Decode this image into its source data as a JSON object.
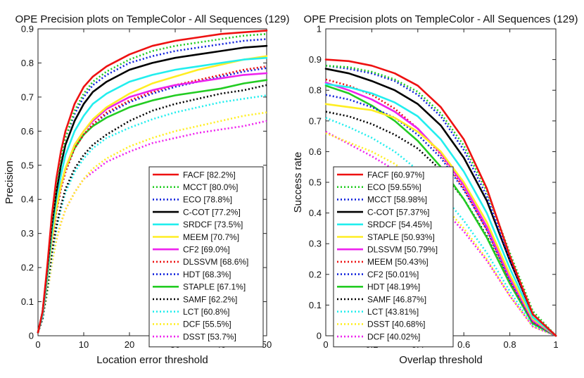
{
  "chart_data": [
    {
      "type": "line",
      "title": "OPE Precision plots on TempleColor - All Sequences (129)",
      "xlabel": "Location error threshold",
      "ylabel": "Precision",
      "xlim": [
        0,
        50
      ],
      "ylim": [
        0,
        0.9
      ],
      "xticks": [
        "0",
        "10",
        "20",
        "30",
        "40",
        "50"
      ],
      "yticks": [
        "0",
        "0.1",
        "0.2",
        "0.3",
        "0.4",
        "0.5",
        "0.6",
        "0.7",
        "0.8",
        "0.9"
      ],
      "grid": false,
      "legend_position": "bottom-right",
      "x": [
        0,
        1,
        2,
        3,
        4,
        5,
        6,
        8,
        10,
        12,
        15,
        20,
        25,
        30,
        35,
        40,
        45,
        50
      ],
      "series": [
        {
          "name": "FACF [82.2%]",
          "color": "#ee1111",
          "dash": "solid",
          "values": [
            0.01,
            0.07,
            0.2,
            0.35,
            0.46,
            0.54,
            0.6,
            0.68,
            0.73,
            0.76,
            0.79,
            0.825,
            0.85,
            0.865,
            0.875,
            0.885,
            0.89,
            0.895
          ]
        },
        {
          "name": "MCCT [80.0%]",
          "color": "#22cc22",
          "dash": "dotted",
          "values": [
            0.01,
            0.07,
            0.19,
            0.33,
            0.44,
            0.52,
            0.58,
            0.66,
            0.71,
            0.745,
            0.775,
            0.81,
            0.835,
            0.85,
            0.86,
            0.87,
            0.88,
            0.885
          ]
        },
        {
          "name": "ECO [78.8%]",
          "color": "#1122dd",
          "dash": "dotted",
          "values": [
            0.01,
            0.07,
            0.19,
            0.33,
            0.44,
            0.52,
            0.58,
            0.65,
            0.7,
            0.735,
            0.765,
            0.8,
            0.82,
            0.835,
            0.845,
            0.855,
            0.865,
            0.87
          ]
        },
        {
          "name": "C-COT [77.2%]",
          "color": "#000000",
          "dash": "solid",
          "values": [
            0.01,
            0.07,
            0.19,
            0.32,
            0.42,
            0.5,
            0.56,
            0.63,
            0.68,
            0.715,
            0.745,
            0.78,
            0.8,
            0.815,
            0.825,
            0.835,
            0.845,
            0.85
          ]
        },
        {
          "name": "SRDCF [73.5%]",
          "color": "#22eeee",
          "dash": "solid",
          "values": [
            0.01,
            0.06,
            0.17,
            0.3,
            0.4,
            0.47,
            0.53,
            0.6,
            0.645,
            0.68,
            0.71,
            0.745,
            0.765,
            0.78,
            0.79,
            0.8,
            0.81,
            0.815
          ]
        },
        {
          "name": "MEEM [70.7%]",
          "color": "#ffee22",
          "dash": "solid",
          "values": [
            0.01,
            0.06,
            0.16,
            0.28,
            0.37,
            0.44,
            0.49,
            0.56,
            0.6,
            0.635,
            0.67,
            0.71,
            0.74,
            0.76,
            0.78,
            0.795,
            0.81,
            0.82
          ]
        },
        {
          "name": "CF2 [69.0%]",
          "color": "#ee22ee",
          "dash": "solid",
          "values": [
            0.01,
            0.06,
            0.16,
            0.28,
            0.37,
            0.44,
            0.49,
            0.56,
            0.6,
            0.63,
            0.665,
            0.7,
            0.72,
            0.735,
            0.745,
            0.755,
            0.765,
            0.77
          ]
        },
        {
          "name": "DLSSVM [68.6%]",
          "color": "#ee1111",
          "dash": "dotted",
          "values": [
            0.01,
            0.06,
            0.16,
            0.27,
            0.36,
            0.43,
            0.48,
            0.55,
            0.59,
            0.62,
            0.655,
            0.69,
            0.715,
            0.735,
            0.75,
            0.765,
            0.78,
            0.79
          ]
        },
        {
          "name": "HDT [68.3%]",
          "color": "#1122dd",
          "dash": "dotted",
          "values": [
            0.01,
            0.06,
            0.16,
            0.27,
            0.36,
            0.43,
            0.48,
            0.55,
            0.59,
            0.62,
            0.65,
            0.685,
            0.71,
            0.73,
            0.745,
            0.76,
            0.775,
            0.785
          ]
        },
        {
          "name": "STAPLE [67.1%]",
          "color": "#22cc22",
          "dash": "solid",
          "values": [
            0.01,
            0.06,
            0.16,
            0.28,
            0.37,
            0.44,
            0.49,
            0.55,
            0.59,
            0.615,
            0.64,
            0.67,
            0.69,
            0.705,
            0.715,
            0.725,
            0.74,
            0.75
          ]
        },
        {
          "name": "SAMF [62.2%]",
          "color": "#000000",
          "dash": "dotted",
          "values": [
            0.01,
            0.05,
            0.14,
            0.24,
            0.32,
            0.38,
            0.43,
            0.49,
            0.53,
            0.56,
            0.59,
            0.63,
            0.66,
            0.68,
            0.695,
            0.71,
            0.72,
            0.735
          ]
        },
        {
          "name": "LCT [60.8%]",
          "color": "#22eeee",
          "dash": "dotted",
          "values": [
            0.01,
            0.05,
            0.13,
            0.23,
            0.31,
            0.37,
            0.42,
            0.48,
            0.52,
            0.55,
            0.58,
            0.61,
            0.635,
            0.655,
            0.67,
            0.685,
            0.695,
            0.705
          ]
        },
        {
          "name": "DCF [55.5%]",
          "color": "#ffee22",
          "dash": "dotted",
          "values": [
            0.01,
            0.05,
            0.12,
            0.21,
            0.28,
            0.33,
            0.37,
            0.42,
            0.46,
            0.49,
            0.52,
            0.555,
            0.58,
            0.6,
            0.615,
            0.63,
            0.645,
            0.655
          ]
        },
        {
          "name": "DSST [53.7%]",
          "color": "#ee22ee",
          "dash": "dotted",
          "values": [
            0.01,
            0.05,
            0.12,
            0.21,
            0.28,
            0.33,
            0.37,
            0.42,
            0.46,
            0.48,
            0.51,
            0.54,
            0.565,
            0.58,
            0.595,
            0.605,
            0.615,
            0.63
          ]
        }
      ]
    },
    {
      "type": "line",
      "title": "OPE Precision plots on TempleColor - All Sequences (129)",
      "xlabel": "Overlap threshold",
      "ylabel": "Success rate",
      "xlim": [
        0,
        1
      ],
      "ylim": [
        0,
        1
      ],
      "xticks": [
        "0",
        "0.2",
        "0.4",
        "0.6",
        "0.8",
        "1"
      ],
      "yticks": [
        "0",
        "0.1",
        "0.2",
        "0.3",
        "0.4",
        "0.5",
        "0.6",
        "0.7",
        "0.8",
        "0.9",
        "1"
      ],
      "grid": false,
      "legend_position": "bottom-left",
      "x": [
        0,
        0.1,
        0.2,
        0.3,
        0.4,
        0.5,
        0.6,
        0.7,
        0.8,
        0.9,
        1.0
      ],
      "series": [
        {
          "name": "FACF [60.97%]",
          "color": "#ee1111",
          "dash": "solid",
          "values": [
            0.9,
            0.895,
            0.88,
            0.855,
            0.815,
            0.745,
            0.64,
            0.48,
            0.26,
            0.07,
            0.0
          ]
        },
        {
          "name": "ECO [59.55%]",
          "color": "#22cc22",
          "dash": "dotted",
          "values": [
            0.88,
            0.875,
            0.86,
            0.835,
            0.795,
            0.725,
            0.62,
            0.47,
            0.27,
            0.08,
            0.0
          ]
        },
        {
          "name": "MCCT [58.98%]",
          "color": "#1122dd",
          "dash": "dotted",
          "values": [
            0.88,
            0.87,
            0.855,
            0.83,
            0.785,
            0.715,
            0.605,
            0.455,
            0.25,
            0.07,
            0.0
          ]
        },
        {
          "name": "C-COT [57.37%]",
          "color": "#000000",
          "dash": "solid",
          "values": [
            0.87,
            0.855,
            0.83,
            0.8,
            0.755,
            0.685,
            0.58,
            0.44,
            0.245,
            0.07,
            0.0
          ]
        },
        {
          "name": "SRDCF [54.45%]",
          "color": "#22eeee",
          "dash": "solid",
          "values": [
            0.82,
            0.81,
            0.79,
            0.76,
            0.715,
            0.64,
            0.535,
            0.4,
            0.22,
            0.06,
            0.0
          ]
        },
        {
          "name": "STAPLE [50.93%]",
          "color": "#ffee22",
          "dash": "solid",
          "values": [
            0.755,
            0.745,
            0.735,
            0.71,
            0.665,
            0.6,
            0.5,
            0.37,
            0.2,
            0.055,
            0.0
          ]
        },
        {
          "name": "DLSSVM [50.79%]",
          "color": "#ee22ee",
          "dash": "solid",
          "values": [
            0.825,
            0.8,
            0.77,
            0.73,
            0.675,
            0.595,
            0.49,
            0.355,
            0.19,
            0.05,
            0.0
          ]
        },
        {
          "name": "MEEM [50.43%]",
          "color": "#ee1111",
          "dash": "dotted",
          "values": [
            0.835,
            0.815,
            0.785,
            0.74,
            0.675,
            0.59,
            0.48,
            0.345,
            0.18,
            0.045,
            0.0
          ]
        },
        {
          "name": "CF2 [50.01%]",
          "color": "#1122dd",
          "dash": "dotted",
          "values": [
            0.785,
            0.77,
            0.745,
            0.71,
            0.655,
            0.58,
            0.475,
            0.345,
            0.18,
            0.045,
            0.0
          ]
        },
        {
          "name": "HDT [48.19%]",
          "color": "#22cc22",
          "dash": "solid",
          "values": [
            0.815,
            0.79,
            0.75,
            0.7,
            0.635,
            0.55,
            0.445,
            0.32,
            0.17,
            0.04,
            0.0
          ]
        },
        {
          "name": "SAMF [46.87%]",
          "color": "#000000",
          "dash": "dotted",
          "values": [
            0.73,
            0.715,
            0.69,
            0.655,
            0.61,
            0.54,
            0.445,
            0.325,
            0.17,
            0.04,
            0.0
          ]
        },
        {
          "name": "LCT [43.81%]",
          "color": "#22eeee",
          "dash": "dotted",
          "values": [
            0.71,
            0.68,
            0.645,
            0.6,
            0.54,
            0.465,
            0.375,
            0.27,
            0.145,
            0.035,
            0.0
          ]
        },
        {
          "name": "DSST [40.68%]",
          "color": "#ffee22",
          "dash": "dotted",
          "values": [
            0.66,
            0.63,
            0.6,
            0.56,
            0.505,
            0.435,
            0.35,
            0.25,
            0.13,
            0.03,
            0.0
          ]
        },
        {
          "name": "DCF [40.02%]",
          "color": "#ee22ee",
          "dash": "dotted",
          "values": [
            0.665,
            0.625,
            0.585,
            0.54,
            0.485,
            0.42,
            0.34,
            0.245,
            0.13,
            0.03,
            0.0
          ]
        }
      ]
    }
  ]
}
